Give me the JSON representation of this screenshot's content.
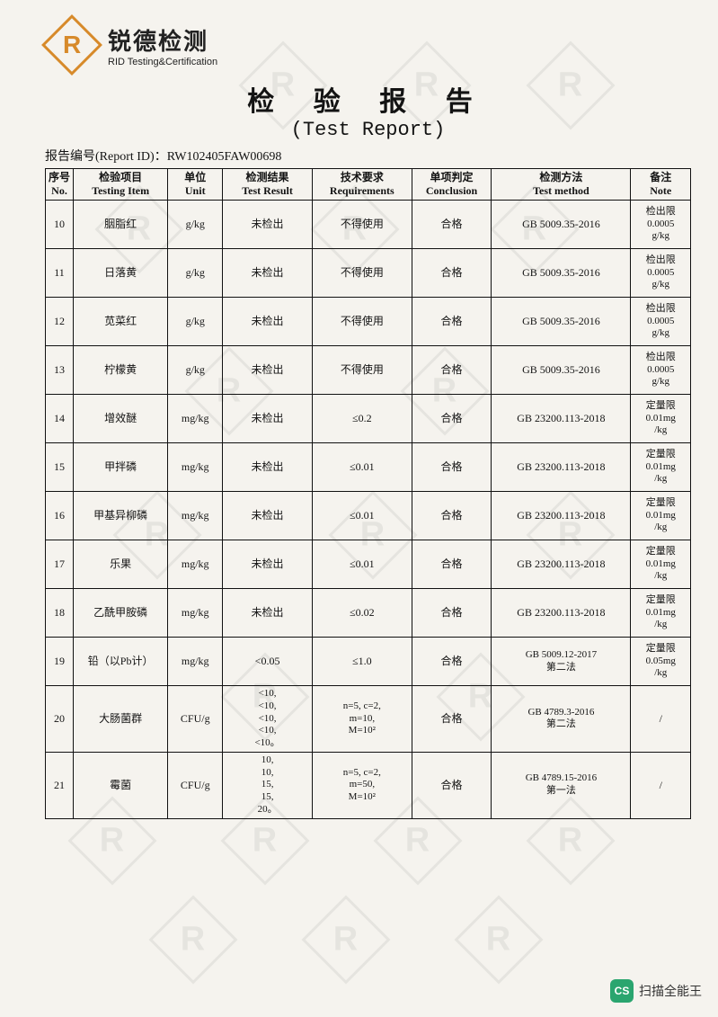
{
  "logo": {
    "letter": "R",
    "cn": "锐德检测",
    "en": "RID Testing&Certification"
  },
  "title": {
    "cn": "检 验 报 告",
    "en": "(Test Report)"
  },
  "report_id": {
    "label": "报告编号(Report ID)：",
    "value": "RW102405FAW00698"
  },
  "columns": [
    {
      "cn": "序号",
      "en": "No."
    },
    {
      "cn": "检验项目",
      "en": "Testing Item"
    },
    {
      "cn": "单位",
      "en": "Unit"
    },
    {
      "cn": "检测结果",
      "en": "Test Result"
    },
    {
      "cn": "技术要求",
      "en": "Requirements"
    },
    {
      "cn": "单项判定",
      "en": "Conclusion"
    },
    {
      "cn": "检测方法",
      "en": "Test method"
    },
    {
      "cn": "备注",
      "en": "Note"
    }
  ],
  "rows": [
    {
      "no": "10",
      "item": "胭脂红",
      "unit": "g/kg",
      "result": "未检出",
      "req": "不得使用",
      "concl": "合格",
      "method": "GB 5009.35-2016",
      "note": "检出限\n0.0005\ng/kg"
    },
    {
      "no": "11",
      "item": "日落黄",
      "unit": "g/kg",
      "result": "未检出",
      "req": "不得使用",
      "concl": "合格",
      "method": "GB 5009.35-2016",
      "note": "检出限\n0.0005\ng/kg"
    },
    {
      "no": "12",
      "item": "苋菜红",
      "unit": "g/kg",
      "result": "未检出",
      "req": "不得使用",
      "concl": "合格",
      "method": "GB 5009.35-2016",
      "note": "检出限\n0.0005\ng/kg"
    },
    {
      "no": "13",
      "item": "柠檬黄",
      "unit": "g/kg",
      "result": "未检出",
      "req": "不得使用",
      "concl": "合格",
      "method": "GB 5009.35-2016",
      "note": "检出限\n0.0005\ng/kg"
    },
    {
      "no": "14",
      "item": "增效醚",
      "unit": "mg/kg",
      "result": "未检出",
      "req": "≤0.2",
      "concl": "合格",
      "method": "GB 23200.113-2018",
      "note": "定量限\n0.01mg\n/kg"
    },
    {
      "no": "15",
      "item": "甲拌磷",
      "unit": "mg/kg",
      "result": "未检出",
      "req": "≤0.01",
      "concl": "合格",
      "method": "GB 23200.113-2018",
      "note": "定量限\n0.01mg\n/kg"
    },
    {
      "no": "16",
      "item": "甲基异柳磷",
      "unit": "mg/kg",
      "result": "未检出",
      "req": "≤0.01",
      "concl": "合格",
      "method": "GB 23200.113-2018",
      "note": "定量限\n0.01mg\n/kg"
    },
    {
      "no": "17",
      "item": "乐果",
      "unit": "mg/kg",
      "result": "未检出",
      "req": "≤0.01",
      "concl": "合格",
      "method": "GB 23200.113-2018",
      "note": "定量限\n0.01mg\n/kg"
    },
    {
      "no": "18",
      "item": "乙酰甲胺磷",
      "unit": "mg/kg",
      "result": "未检出",
      "req": "≤0.02",
      "concl": "合格",
      "method": "GB 23200.113-2018",
      "note": "定量限\n0.01mg\n/kg"
    },
    {
      "no": "19",
      "item": "铅（以Pb计）",
      "unit": "mg/kg",
      "result": "<0.05",
      "req": "≤1.0",
      "concl": "合格",
      "method": "GB 5009.12-2017\n第二法",
      "note": "定量限\n0.05mg\n/kg"
    },
    {
      "no": "20",
      "item": "大肠菌群",
      "unit": "CFU/g",
      "result": "<10,\n<10,\n<10,\n<10,\n<10。",
      "req": "n=5, c=2,\nm=10,\nM=10²",
      "concl": "合格",
      "method": "GB 4789.3-2016\n第二法",
      "note": "/"
    },
    {
      "no": "21",
      "item": "霉菌",
      "unit": "CFU/g",
      "result": "10,\n10,\n15,\n15,\n20。",
      "req": "n=5, c=2,\nm=50,\nM=10²",
      "concl": "合格",
      "method": "GB 4789.15-2016\n第一法",
      "note": "/"
    }
  ],
  "scan_badge": {
    "icon": "CS",
    "text": "扫描全能王"
  },
  "colors": {
    "accent": "#d78a2a",
    "border": "#111111",
    "text": "#131313",
    "bg": "#f5f3ee"
  }
}
